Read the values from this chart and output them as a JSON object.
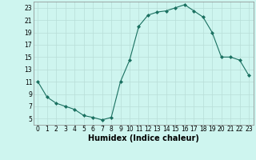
{
  "x": [
    0,
    1,
    2,
    3,
    4,
    5,
    6,
    7,
    8,
    9,
    10,
    11,
    12,
    13,
    14,
    15,
    16,
    17,
    18,
    19,
    20,
    21,
    22,
    23
  ],
  "y": [
    11,
    8.5,
    7.5,
    7,
    6.5,
    5.5,
    5.2,
    4.8,
    5.2,
    11,
    14.5,
    20,
    21.8,
    22.3,
    22.5,
    23,
    23.5,
    22.5,
    21.5,
    19,
    15,
    15,
    14.5,
    12
  ],
  "line_color": "#1a7060",
  "marker_color": "#1a7060",
  "bg_color": "#cef5ef",
  "grid_color": "#b8ddd8",
  "xlabel": "Humidex (Indice chaleur)",
  "xlim": [
    -0.5,
    23.5
  ],
  "ylim": [
    4,
    24
  ],
  "yticks": [
    5,
    7,
    9,
    11,
    13,
    15,
    17,
    19,
    21,
    23
  ],
  "xticks": [
    0,
    1,
    2,
    3,
    4,
    5,
    6,
    7,
    8,
    9,
    10,
    11,
    12,
    13,
    14,
    15,
    16,
    17,
    18,
    19,
    20,
    21,
    22,
    23
  ],
  "tick_label_fontsize": 5.5,
  "xlabel_fontsize": 7.0
}
